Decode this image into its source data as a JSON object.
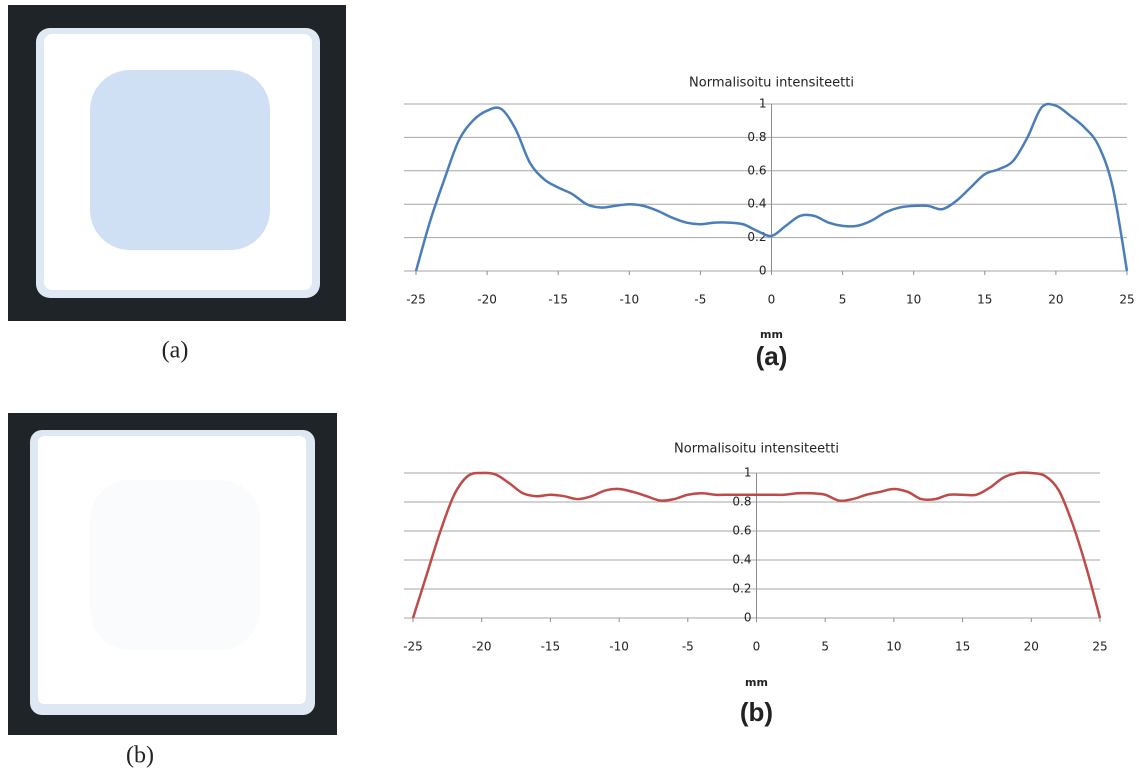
{
  "photo_captions": [
    "(a)",
    "(b)"
  ],
  "chart_data": [
    {
      "type": "line",
      "title": "Normalisoitu intensiteetti",
      "x_label": "mm",
      "caption": "(a)",
      "color": "#4a7ebb",
      "grid": true,
      "x": [
        -25,
        -24,
        -23,
        -22,
        -21,
        -20,
        -19,
        -18,
        -17,
        -16,
        -15,
        -14,
        -13,
        -12,
        -11,
        -10,
        -9,
        -8,
        -7,
        -6,
        -5,
        -4,
        -3,
        -2,
        -1,
        0,
        1,
        2,
        3,
        4,
        5,
        6,
        7,
        8,
        9,
        10,
        11,
        12,
        13,
        14,
        15,
        16,
        17,
        18,
        19,
        20,
        21,
        22,
        23,
        24,
        25
      ],
      "values": [
        0,
        0.3,
        0.55,
        0.78,
        0.9,
        0.96,
        0.97,
        0.85,
        0.65,
        0.55,
        0.5,
        0.46,
        0.4,
        0.38,
        0.39,
        0.4,
        0.39,
        0.36,
        0.32,
        0.29,
        0.28,
        0.29,
        0.29,
        0.28,
        0.24,
        0.21,
        0.27,
        0.33,
        0.33,
        0.29,
        0.27,
        0.27,
        0.3,
        0.35,
        0.38,
        0.39,
        0.39,
        0.37,
        0.42,
        0.5,
        0.58,
        0.61,
        0.66,
        0.8,
        0.98,
        0.99,
        0.93,
        0.86,
        0.75,
        0.5,
        0
      ],
      "xlim": [
        -25,
        25
      ],
      "ylim": [
        0,
        1
      ],
      "xticks": [
        -25,
        -20,
        -15,
        -10,
        -5,
        0,
        5,
        10,
        15,
        20,
        25
      ],
      "yticks": [
        0,
        0.2,
        0.4,
        0.6,
        0.8,
        1
      ]
    },
    {
      "type": "line",
      "title": "Normalisoitu intensiteetti",
      "x_label": "mm",
      "caption": "(b)",
      "color": "#be4b48",
      "grid": true,
      "x": [
        -25,
        -24,
        -23,
        -22,
        -21,
        -20,
        -19,
        -18,
        -17,
        -16,
        -15,
        -14,
        -13,
        -12,
        -11,
        -10,
        -9,
        -8,
        -7,
        -6,
        -5,
        -4,
        -3,
        -2,
        -1,
        0,
        1,
        2,
        3,
        4,
        5,
        6,
        7,
        8,
        9,
        10,
        11,
        12,
        13,
        14,
        15,
        16,
        17,
        18,
        19,
        20,
        21,
        22,
        23,
        24,
        25
      ],
      "values": [
        0,
        0.3,
        0.6,
        0.85,
        0.98,
        1,
        0.99,
        0.93,
        0.86,
        0.84,
        0.85,
        0.84,
        0.82,
        0.84,
        0.88,
        0.89,
        0.87,
        0.84,
        0.81,
        0.82,
        0.85,
        0.86,
        0.85,
        0.85,
        0.85,
        0.85,
        0.85,
        0.85,
        0.86,
        0.86,
        0.85,
        0.81,
        0.82,
        0.85,
        0.87,
        0.89,
        0.87,
        0.82,
        0.82,
        0.85,
        0.85,
        0.85,
        0.9,
        0.97,
        1,
        1,
        0.98,
        0.88,
        0.65,
        0.35,
        0
      ],
      "xlim": [
        -25,
        25
      ],
      "ylim": [
        0,
        1
      ],
      "xticks": [
        -25,
        -20,
        -15,
        -10,
        -5,
        0,
        5,
        10,
        15,
        20,
        25
      ],
      "yticks": [
        0,
        0.2,
        0.4,
        0.6,
        0.8,
        1
      ]
    }
  ]
}
